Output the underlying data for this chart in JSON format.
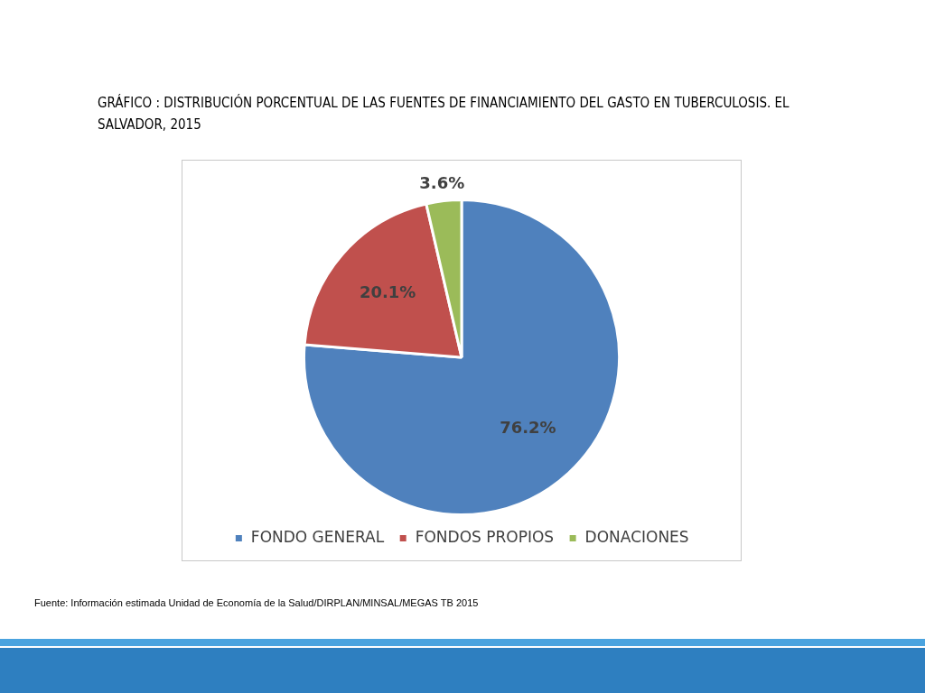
{
  "chart_data": {
    "type": "pie",
    "title": "GRÁFICO :  DISTRIBUCIÓN PORCENTUAL DE LAS FUENTES DE FINANCIAMIENTO DEL GASTO EN TUBERCULOSIS. EL SALVADOR, 2015",
    "categories": [
      "FONDO GENERAL",
      "FONDOS PROPIOS",
      "DONACIONES"
    ],
    "values": [
      76.2,
      20.1,
      3.6
    ],
    "colors": [
      "#4f81bd",
      "#c0504d",
      "#9bbb59"
    ],
    "value_labels": [
      "76.2%",
      "20.1%",
      "3.6%"
    ],
    "legend": "bottom",
    "annotations": [
      "Fuente: Información estimada Unidad de Economía de la Salud/DIRPLAN/MINSAL/MEGAS TB 2015"
    ]
  }
}
